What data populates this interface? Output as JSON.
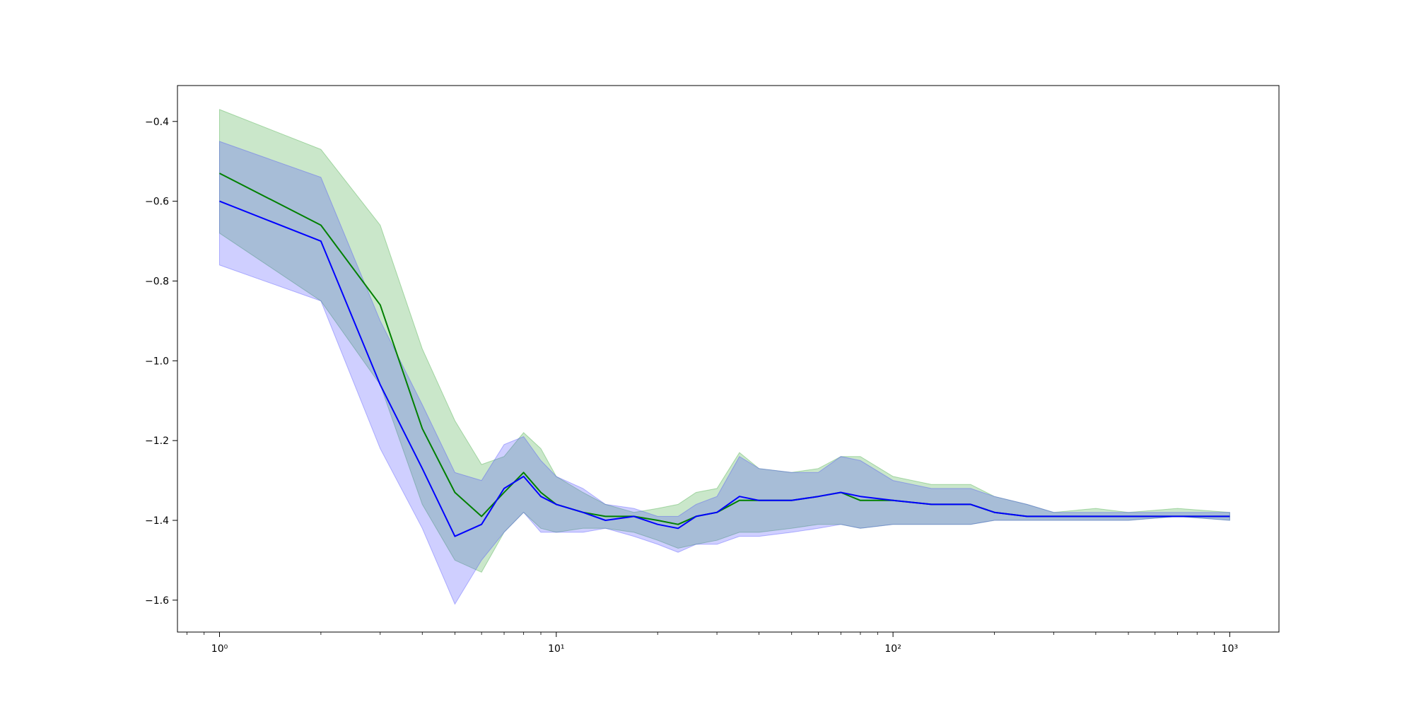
{
  "chart_data": {
    "type": "line",
    "xscale": "log",
    "xlim": [
      0.75,
      1400
    ],
    "ylim": [
      -1.68,
      -0.31
    ],
    "grid": false,
    "x_ticks": [
      {
        "value": 1,
        "label": "10⁰"
      },
      {
        "value": 10,
        "label": "10¹"
      },
      {
        "value": 100,
        "label": "10²"
      },
      {
        "value": 1000,
        "label": "10³"
      }
    ],
    "y_ticks": [
      {
        "value": -0.4,
        "label": "−0.4"
      },
      {
        "value": -0.6,
        "label": "−0.6"
      },
      {
        "value": -0.8,
        "label": "−0.8"
      },
      {
        "value": -1.0,
        "label": "−1.0"
      },
      {
        "value": -1.2,
        "label": "−1.2"
      },
      {
        "value": -1.4,
        "label": "−1.4"
      },
      {
        "value": -1.6,
        "label": "−1.6"
      }
    ],
    "series": [
      {
        "color": "#008000",
        "band_color": "#2ca02c",
        "x": [
          1,
          2,
          3,
          4,
          5,
          6,
          7,
          8,
          9,
          10,
          12,
          14,
          17,
          20,
          23,
          26,
          30,
          35,
          40,
          50,
          60,
          70,
          80,
          100,
          130,
          170,
          200,
          250,
          300,
          400,
          500,
          700,
          1000
        ],
        "y": [
          -0.53,
          -0.66,
          -0.86,
          -1.17,
          -1.33,
          -1.39,
          -1.33,
          -1.28,
          -1.33,
          -1.36,
          -1.38,
          -1.39,
          -1.39,
          -1.4,
          -1.41,
          -1.39,
          -1.38,
          -1.35,
          -1.35,
          -1.35,
          -1.34,
          -1.33,
          -1.35,
          -1.35,
          -1.36,
          -1.36,
          -1.38,
          -1.39,
          -1.39,
          -1.39,
          -1.39,
          -1.39,
          -1.39
        ],
        "upper": [
          -0.37,
          -0.47,
          -0.66,
          -0.97,
          -1.15,
          -1.26,
          -1.24,
          -1.18,
          -1.22,
          -1.29,
          -1.33,
          -1.36,
          -1.38,
          -1.37,
          -1.36,
          -1.33,
          -1.32,
          -1.23,
          -1.27,
          -1.28,
          -1.27,
          -1.24,
          -1.24,
          -1.29,
          -1.31,
          -1.31,
          -1.34,
          -1.36,
          -1.38,
          -1.37,
          -1.38,
          -1.37,
          -1.38
        ],
        "lower": [
          -0.68,
          -0.85,
          -1.06,
          -1.36,
          -1.5,
          -1.53,
          -1.43,
          -1.38,
          -1.42,
          -1.43,
          -1.42,
          -1.42,
          -1.43,
          -1.45,
          -1.47,
          -1.46,
          -1.45,
          -1.43,
          -1.43,
          -1.42,
          -1.41,
          -1.41,
          -1.42,
          -1.41,
          -1.41,
          -1.41,
          -1.4,
          -1.4,
          -1.4,
          -1.4,
          -1.4,
          -1.39,
          -1.4
        ]
      },
      {
        "color": "#0000ff",
        "band_color": "#4040ff",
        "x": [
          1,
          2,
          3,
          4,
          5,
          6,
          7,
          8,
          9,
          10,
          12,
          14,
          17,
          20,
          23,
          26,
          30,
          35,
          40,
          50,
          60,
          70,
          80,
          100,
          130,
          170,
          200,
          250,
          300,
          400,
          500,
          700,
          1000
        ],
        "y": [
          -0.6,
          -0.7,
          -1.06,
          -1.27,
          -1.44,
          -1.41,
          -1.32,
          -1.29,
          -1.34,
          -1.36,
          -1.38,
          -1.4,
          -1.39,
          -1.41,
          -1.42,
          -1.39,
          -1.38,
          -1.34,
          -1.35,
          -1.35,
          -1.34,
          -1.33,
          -1.34,
          -1.35,
          -1.36,
          -1.36,
          -1.38,
          -1.39,
          -1.39,
          -1.39,
          -1.39,
          -1.39,
          -1.39
        ],
        "upper": [
          -0.45,
          -0.54,
          -0.9,
          -1.11,
          -1.28,
          -1.3,
          -1.21,
          -1.19,
          -1.25,
          -1.29,
          -1.32,
          -1.36,
          -1.37,
          -1.39,
          -1.39,
          -1.36,
          -1.34,
          -1.24,
          -1.27,
          -1.28,
          -1.28,
          -1.24,
          -1.25,
          -1.3,
          -1.32,
          -1.32,
          -1.34,
          -1.36,
          -1.38,
          -1.38,
          -1.38,
          -1.38,
          -1.38
        ],
        "lower": [
          -0.76,
          -0.85,
          -1.22,
          -1.42,
          -1.61,
          -1.5,
          -1.43,
          -1.38,
          -1.43,
          -1.43,
          -1.43,
          -1.42,
          -1.44,
          -1.46,
          -1.48,
          -1.46,
          -1.46,
          -1.44,
          -1.44,
          -1.43,
          -1.42,
          -1.41,
          -1.42,
          -1.41,
          -1.41,
          -1.41,
          -1.4,
          -1.4,
          -1.4,
          -1.4,
          -1.4,
          -1.39,
          -1.4
        ]
      }
    ]
  }
}
